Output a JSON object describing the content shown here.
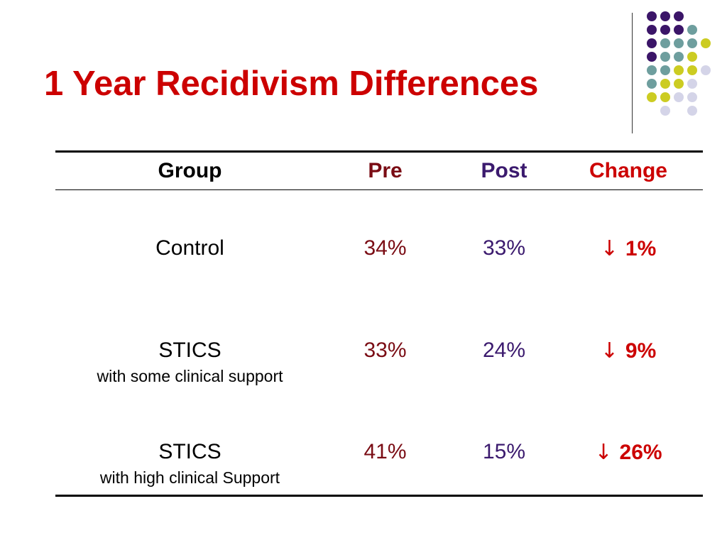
{
  "title": "1 Year Recidivism Differences",
  "colors": {
    "title": "#cc0000",
    "pre": "#7a0c14",
    "post": "#3b1a6e",
    "change": "#cc0000",
    "text": "#000000",
    "dot_purple": "#3b1568",
    "dot_teal": "#6e9e9e",
    "dot_yellow": "#cccc22",
    "dot_lavender": "#d4d4e8"
  },
  "table": {
    "headers": {
      "group": "Group",
      "pre": "Pre",
      "post": "Post",
      "change": "Change"
    },
    "rows": [
      {
        "group": "Control",
        "subtitle": "",
        "pre": "34%",
        "post": "33%",
        "change_arrow": "↓",
        "change": "1%"
      },
      {
        "group": "STICS",
        "subtitle": "with some clinical support",
        "pre": "33%",
        "post": "24%",
        "change_arrow": "↓",
        "change": "9%"
      },
      {
        "group": "STICS",
        "subtitle": "with high clinical Support",
        "pre": "41%",
        "post": "15%",
        "change_arrow": "↓",
        "change": "26%"
      }
    ]
  }
}
